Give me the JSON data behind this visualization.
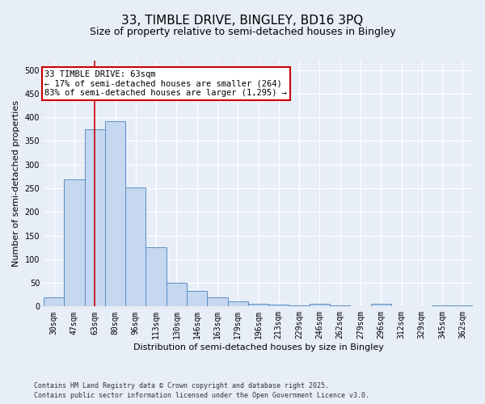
{
  "title": "33, TIMBLE DRIVE, BINGLEY, BD16 3PQ",
  "subtitle": "Size of property relative to semi-detached houses in Bingley",
  "xlabel": "Distribution of semi-detached houses by size in Bingley",
  "ylabel": "Number of semi-detached properties",
  "categories": [
    "30sqm",
    "47sqm",
    "63sqm",
    "80sqm",
    "96sqm",
    "113sqm",
    "130sqm",
    "146sqm",
    "163sqm",
    "179sqm",
    "196sqm",
    "213sqm",
    "229sqm",
    "246sqm",
    "262sqm",
    "279sqm",
    "296sqm",
    "312sqm",
    "329sqm",
    "345sqm",
    "362sqm"
  ],
  "values": [
    20,
    268,
    375,
    392,
    252,
    125,
    50,
    33,
    20,
    10,
    6,
    4,
    2,
    5,
    2,
    0,
    5,
    0,
    0,
    2,
    3
  ],
  "bar_color": "#c5d8f0",
  "bar_edge_color": "#5b8ec4",
  "highlight_index": 2,
  "highlight_line_color": "#cc0000",
  "annotation_text": "33 TIMBLE DRIVE: 63sqm\n← 17% of semi-detached houses are smaller (264)\n83% of semi-detached houses are larger (1,295) →",
  "annotation_box_facecolor": "#ffffff",
  "annotation_box_edgecolor": "#cc0000",
  "ylim": [
    0,
    520
  ],
  "yticks": [
    0,
    50,
    100,
    150,
    200,
    250,
    300,
    350,
    400,
    450,
    500
  ],
  "footer_line1": "Contains HM Land Registry data © Crown copyright and database right 2025.",
  "footer_line2": "Contains public sector information licensed under the Open Government Licence v3.0.",
  "bg_color": "#e8eef8",
  "plot_bg_color": "#e8eef8",
  "grid_color": "#ffffff",
  "title_fontsize": 11,
  "subtitle_fontsize": 9,
  "label_fontsize": 8,
  "tick_fontsize": 7,
  "annotation_fontsize": 7.5,
  "footer_fontsize": 6
}
